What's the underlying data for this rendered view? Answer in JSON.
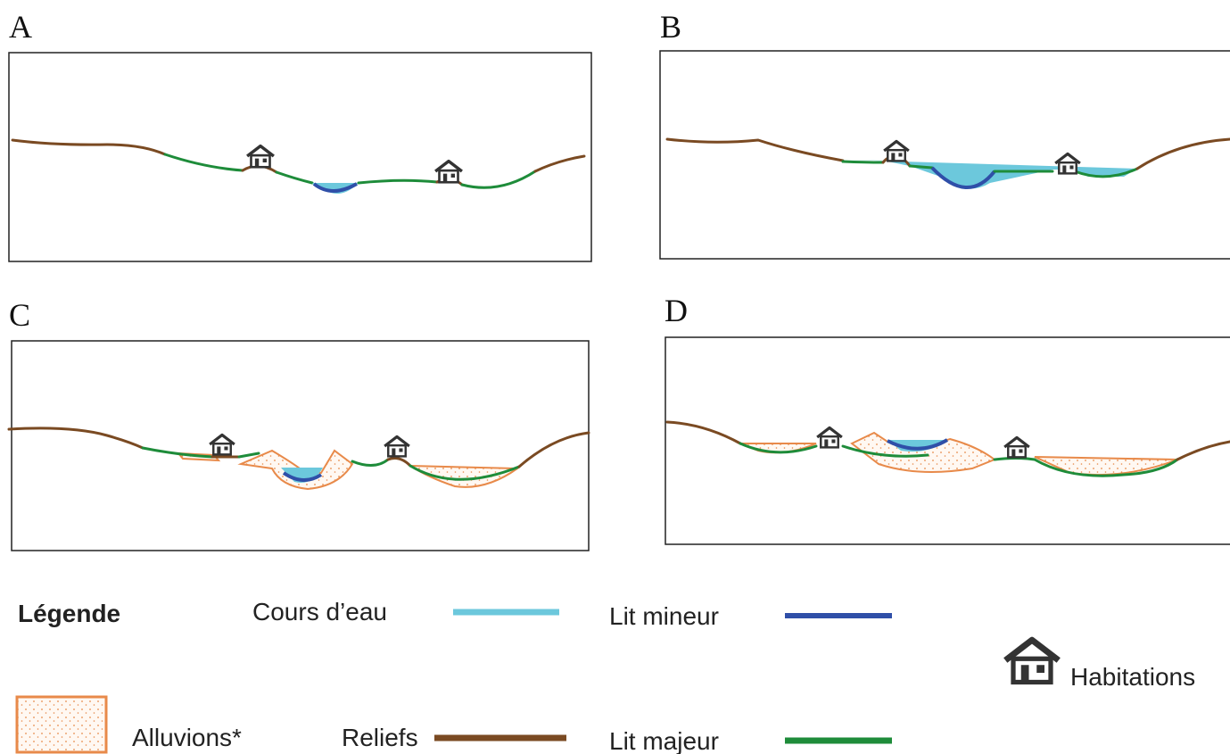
{
  "panels": [
    {
      "label": "A"
    },
    {
      "label": "B"
    },
    {
      "label": "C"
    },
    {
      "label": "D"
    }
  ],
  "legend": {
    "title": "Légende",
    "items": [
      {
        "label": "Cours d’eau"
      },
      {
        "label": "Lit mineur"
      },
      {
        "label": "Habitations"
      },
      {
        "label": "Alluvions*"
      },
      {
        "label": "Reliefs"
      },
      {
        "label": "Lit majeur"
      }
    ]
  }
}
